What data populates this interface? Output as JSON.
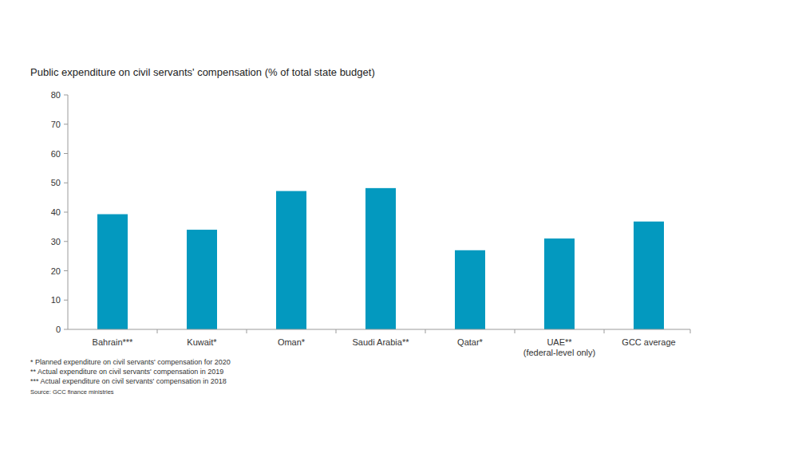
{
  "chart_data": {
    "type": "bar",
    "title": "Public expenditure on civil servants' compensation (% of total state budget)",
    "categories": [
      "Bahrain***",
      "Kuwait*",
      "Oman*",
      "Saudi Arabia**",
      "Qatar*",
      "UAE**\n(federal-level only)",
      "GCC average"
    ],
    "values": [
      39.3,
      34,
      47.2,
      48.2,
      27,
      31,
      36.8
    ],
    "color": "#0399bf",
    "ylim": [
      0,
      80
    ],
    "yticks": [
      0,
      10,
      20,
      30,
      40,
      50,
      60,
      70,
      80
    ],
    "grid": false,
    "notes": [
      "* Planned expenditure on civil servants' compensation for 2020",
      "** Actual expenditure on civil servants' compensation in 2019",
      "*** Actual expenditure on civil servants' compensation in 2018"
    ],
    "source": "Source: GCC finance ministries"
  }
}
